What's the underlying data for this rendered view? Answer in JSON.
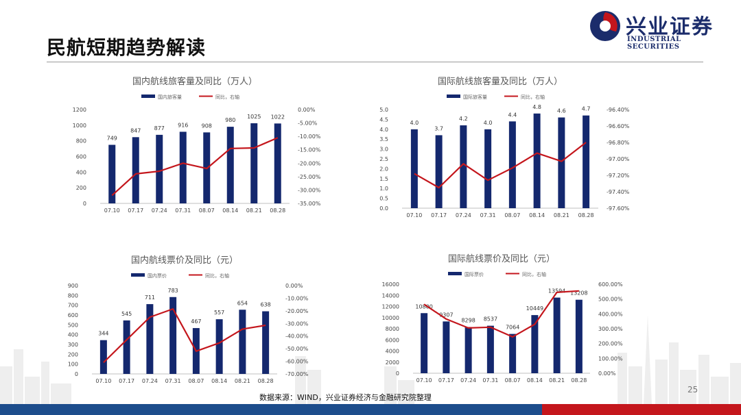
{
  "header": {
    "page_title": "民航短期趋势解读",
    "logo_cn": "兴业证券",
    "logo_en": "INDUSTRIAL SECURITIES"
  },
  "footer": {
    "source": "数据来源：WIND，兴业证券经济与金融研究院整理",
    "page_number": "25"
  },
  "colors": {
    "bar": "#14286e",
    "line": "#c4161c",
    "text": "#444444",
    "footer_blue": "#1d4d8c",
    "footer_red": "#c4161c"
  },
  "chart_data": [
    {
      "type": "bar",
      "title": "国内航线旅客量及同比（万人）",
      "categories": [
        "07.10",
        "07.17",
        "07.24",
        "07.31",
        "08.07",
        "08.14",
        "08.21",
        "08.28"
      ],
      "series": [
        {
          "name": "国内旅客量",
          "type": "bar",
          "axis": "left",
          "values": [
            749,
            847,
            877,
            916,
            908,
            980,
            1025,
            1022
          ],
          "labels": [
            "749",
            "847",
            "877",
            "916",
            "908",
            "980",
            "1025",
            "1022"
          ]
        },
        {
          "name": "同比，右轴",
          "type": "line",
          "axis": "right",
          "values": [
            -32.0,
            -24.0,
            -23.0,
            -20.0,
            -22.0,
            -14.5,
            -14.3,
            -10.5
          ]
        }
      ],
      "left_axis": {
        "min": 0,
        "max": 1200,
        "ticks": [
          "0",
          "200",
          "400",
          "600",
          "800",
          "1000",
          "1200"
        ]
      },
      "right_axis": {
        "min": -35,
        "max": 0,
        "ticks": [
          "-35.00%",
          "-30.00%",
          "-25.00%",
          "-20.00%",
          "-15.00%",
          "-10.00%",
          "-5.00%",
          "0.00%"
        ]
      },
      "legend": "top"
    },
    {
      "type": "bar",
      "title": "国际航线旅客量及同比（万人）",
      "categories": [
        "07.10",
        "07.17",
        "07.24",
        "07.31",
        "08.07",
        "08.14",
        "08.21",
        "08.28"
      ],
      "series": [
        {
          "name": "国际旅客量",
          "type": "bar",
          "axis": "left",
          "values": [
            4.0,
            3.7,
            4.2,
            4.0,
            4.4,
            4.8,
            4.6,
            4.7
          ],
          "labels": [
            "4.0",
            "3.7",
            "4.2",
            "4.0",
            "4.4",
            "4.8",
            "4.6",
            "4.7"
          ]
        },
        {
          "name": "同比，右轴",
          "type": "line",
          "axis": "right",
          "values": [
            -97.18,
            -97.35,
            -97.06,
            -97.26,
            -97.11,
            -96.93,
            -97.03,
            -96.8
          ]
        }
      ],
      "left_axis": {
        "min": 0,
        "max": 5,
        "ticks": [
          "0.0",
          "0.5",
          "1.0",
          "1.5",
          "2.0",
          "2.5",
          "3.0",
          "3.5",
          "4.0",
          "4.5",
          "5.0"
        ]
      },
      "right_axis": {
        "min": -97.6,
        "max": -96.4,
        "ticks": [
          "-97.60%",
          "-97.40%",
          "-97.20%",
          "-97.00%",
          "-96.80%",
          "-96.60%",
          "-96.40%"
        ]
      },
      "legend": "top"
    },
    {
      "type": "bar",
      "title": "国内航线票价及同比（元）",
      "categories": [
        "07.10",
        "07.17",
        "07.24",
        "07.31",
        "08.07",
        "08.14",
        "08.21",
        "08.28"
      ],
      "series": [
        {
          "name": "国内票价",
          "type": "bar",
          "axis": "left",
          "values": [
            344,
            545,
            711,
            783,
            467,
            557,
            654,
            638
          ],
          "labels": [
            "344",
            "545",
            "711",
            "783",
            "467",
            "557",
            "654",
            "638"
          ]
        },
        {
          "name": "同比，右轴",
          "type": "line",
          "axis": "right",
          "values": [
            -61.0,
            -43.0,
            -25.0,
            -18.5,
            -52.0,
            -45.5,
            -34.5,
            -31.5
          ]
        }
      ],
      "left_axis": {
        "min": 0,
        "max": 900,
        "ticks": [
          "0",
          "100",
          "200",
          "300",
          "400",
          "500",
          "600",
          "700",
          "800",
          "900"
        ]
      },
      "right_axis": {
        "min": -70,
        "max": 0,
        "ticks": [
          "-70.00%",
          "-60.00%",
          "-50.00%",
          "-40.00%",
          "-30.00%",
          "-20.00%",
          "-10.00%",
          "0.00%"
        ]
      },
      "legend": "top"
    },
    {
      "type": "bar",
      "title": "国际航线票价及同比（元）",
      "categories": [
        "07.10",
        "07.17",
        "07.24",
        "07.31",
        "08.07",
        "08.14",
        "08.21",
        "08.28"
      ],
      "series": [
        {
          "name": "国际票价",
          "type": "bar",
          "axis": "left",
          "values": [
            10800,
            9307,
            8298,
            8537,
            7064,
            10449,
            13594,
            13208
          ],
          "labels": [
            "10800",
            "9307",
            "8298",
            "8537",
            "7064",
            "10449",
            "13594",
            "13208"
          ]
        },
        {
          "name": "同比，右轴",
          "type": "line",
          "axis": "right",
          "values": [
            465,
            365,
            305,
            310,
            245,
            330,
            545,
            555
          ]
        }
      ],
      "left_axis": {
        "min": 0,
        "max": 16000,
        "ticks": [
          "0",
          "2000",
          "4000",
          "6000",
          "8000",
          "10000",
          "12000",
          "14000",
          "16000"
        ]
      },
      "right_axis": {
        "min": 0,
        "max": 600,
        "ticks": [
          "0.00%",
          "100.00%",
          "200.00%",
          "300.00%",
          "400.00%",
          "500.00%",
          "600.00%"
        ]
      },
      "legend": "top"
    }
  ]
}
